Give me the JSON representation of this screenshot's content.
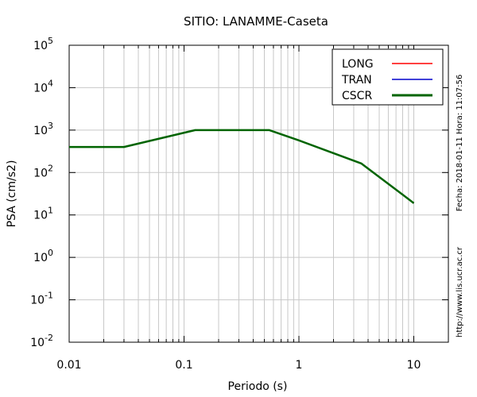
{
  "chart_data": {
    "type": "line",
    "title": "SITIO: LANAMME-Caseta",
    "xlabel": "Periodo (s)",
    "ylabel": "PSA (cm/s2)",
    "x_scale": "log",
    "y_scale": "log",
    "xlim": [
      0.01,
      20
    ],
    "ylim": [
      0.01,
      100000
    ],
    "grid": true,
    "legend_position": "top-right",
    "x_ticks": [
      {
        "value": 0.01,
        "label": "0.01"
      },
      {
        "value": 0.1,
        "label": "0.1"
      },
      {
        "value": 1,
        "label": "1"
      },
      {
        "value": 10,
        "label": "10"
      }
    ],
    "y_ticks": [
      {
        "value": 0.01,
        "base": "10",
        "exp": "-2"
      },
      {
        "value": 0.1,
        "base": "10",
        "exp": "-1"
      },
      {
        "value": 1,
        "base": "10",
        "exp": "0"
      },
      {
        "value": 10,
        "base": "10",
        "exp": "1"
      },
      {
        "value": 100,
        "base": "10",
        "exp": "2"
      },
      {
        "value": 1000,
        "base": "10",
        "exp": "3"
      },
      {
        "value": 10000,
        "base": "10",
        "exp": "4"
      },
      {
        "value": 100000,
        "base": "10",
        "exp": "5"
      }
    ],
    "series": [
      {
        "name": "LONG",
        "color": "#ff0000",
        "x": [
          0.01,
          0.03,
          0.125,
          0.55,
          1.0,
          2.0,
          3.5,
          10.0
        ],
        "y": [
          400,
          400,
          1000,
          1000,
          571,
          286,
          163,
          19
        ]
      },
      {
        "name": "TRAN",
        "color": "#0000cc",
        "x": [
          0.01,
          0.03,
          0.125,
          0.55,
          1.0,
          2.0,
          3.5,
          10.0
        ],
        "y": [
          400,
          400,
          1000,
          1000,
          571,
          286,
          163,
          19
        ]
      },
      {
        "name": "CSCR",
        "color": "#006400",
        "x": [
          0.01,
          0.03,
          0.125,
          0.55,
          1.0,
          2.0,
          3.5,
          10.0
        ],
        "y": [
          400,
          400,
          1000,
          1000,
          571,
          286,
          163,
          19
        ]
      }
    ],
    "annotations": {
      "timestamp": "Fecha: 2018-01-11  Hora: 11:07:56",
      "website": "http://www.lis.ucr.ac.cr"
    }
  }
}
